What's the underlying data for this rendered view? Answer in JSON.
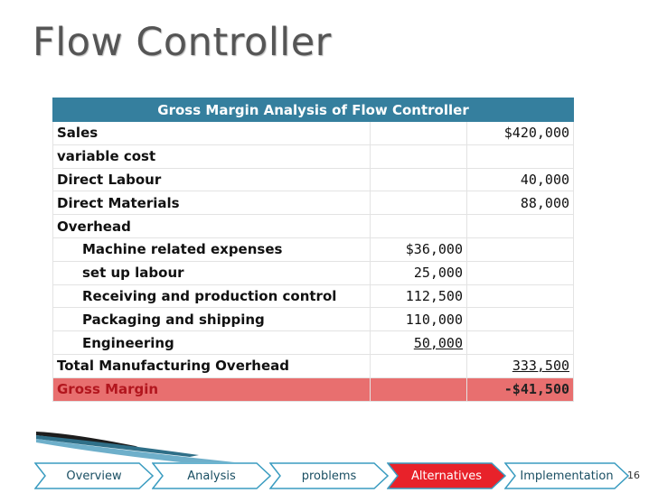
{
  "slide": {
    "title": "Flow Controller",
    "page_number": "16"
  },
  "table": {
    "header": "Gross Margin Analysis of Flow Controller",
    "rows": [
      {
        "label": "Sales",
        "mid": "",
        "right": "$420,000"
      },
      {
        "label": "variable cost",
        "mid": "",
        "right": ""
      },
      {
        "label": "Direct Labour",
        "mid": "",
        "right": "40,000"
      },
      {
        "label": "Direct Materials",
        "mid": "",
        "right": "88,000"
      },
      {
        "label": "Overhead",
        "mid": "",
        "right": ""
      },
      {
        "label": "Machine related expenses",
        "mid": "$36,000",
        "right": ""
      },
      {
        "label": "set up labour",
        "mid": "25,000",
        "right": ""
      },
      {
        "label": "Receiving and production control",
        "mid": "112,500",
        "right": ""
      },
      {
        "label": "Packaging and shipping",
        "mid": "110,000",
        "right": ""
      },
      {
        "label": "Engineering",
        "mid": "50,000",
        "right": ""
      },
      {
        "label": "Total Manufacturing Overhead",
        "mid": "",
        "right": "333,500"
      },
      {
        "label": "Gross Margin",
        "mid": "",
        "right": "-$41,500"
      }
    ]
  },
  "nav": {
    "items": [
      "Overview",
      "Analysis",
      "problems",
      "Alternatives",
      "Implementation"
    ],
    "active_index": 3
  },
  "colors": {
    "header_bg": "#357f9e",
    "gross_margin_bg": "#e86f6f",
    "nav_fill": "#ffffff",
    "nav_border": "#3a9cc0",
    "nav_active": "#e8222a"
  }
}
